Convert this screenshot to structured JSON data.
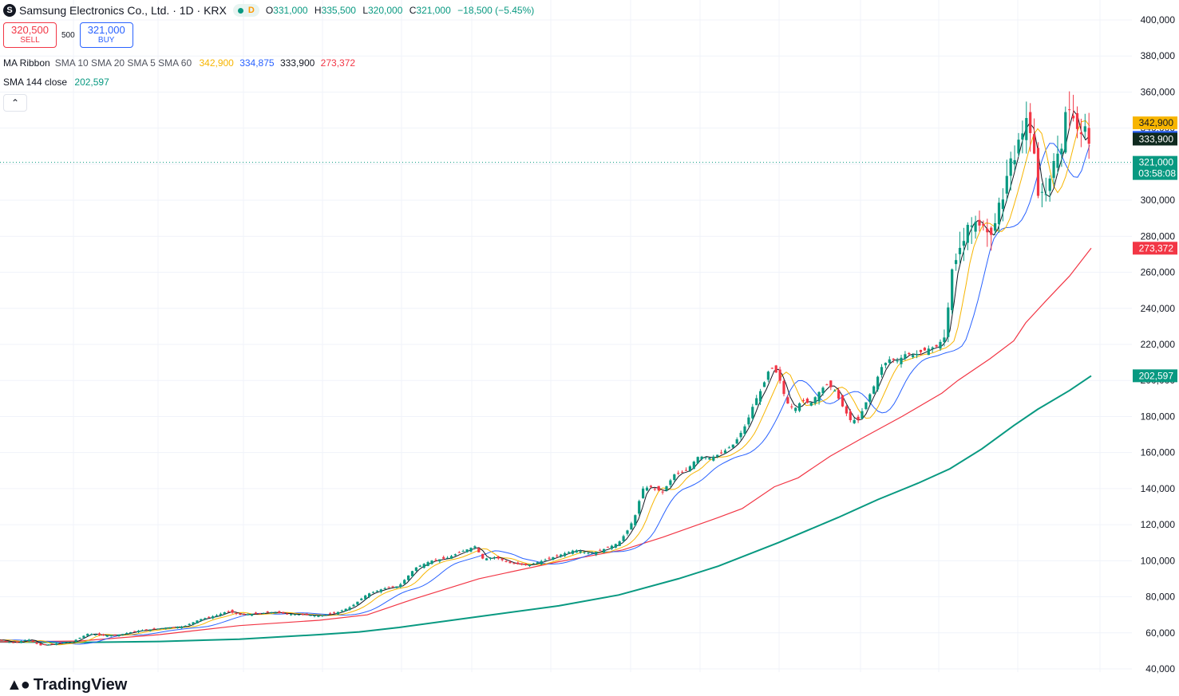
{
  "header": {
    "logo_letter": "S",
    "title": "Samsung Electronics Co., Ltd. · 1D · KRX",
    "market_badge": "D",
    "ohlc": {
      "o_label": "O",
      "o": "331,000",
      "h_label": "H",
      "h": "335,500",
      "l_label": "L",
      "l": "320,000",
      "c_label": "C",
      "c": "321,000",
      "change": "−18,500 (−5.45%)"
    }
  },
  "trade": {
    "sell_price": "320,500",
    "sell_label": "SELL",
    "spread": "500",
    "buy_price": "321,000",
    "buy_label": "BUY"
  },
  "indicators": [
    {
      "name": "MA Ribbon",
      "params": "SMA 10 SMA 20 SMA 5 SMA 60",
      "values": [
        {
          "text": "342,900",
          "color": "#f7b500"
        },
        {
          "text": "334,875",
          "color": "#2962ff"
        },
        {
          "text": "333,900",
          "color": "#131722"
        },
        {
          "text": "273,372",
          "color": "#f23645"
        }
      ]
    },
    {
      "name": "SMA 144 close",
      "params": "",
      "values": [
        {
          "text": "202,597",
          "color": "#089981"
        }
      ]
    }
  ],
  "collapse_icon": "chevron-up-icon",
  "brand": {
    "text": "TradingView",
    "icon": "tradingview-logo-icon"
  },
  "chart_data": {
    "type": "candlestick",
    "ylim": [
      40000,
      400000
    ],
    "y_ticks": [
      "40,000",
      "60,000",
      "80,000",
      "100,000",
      "120,000",
      "140,000",
      "160,000",
      "180,000",
      "200,000",
      "220,000",
      "240,000",
      "260,000",
      "280,000",
      "300,000",
      "320,000",
      "340,000",
      "360,000",
      "380,000",
      "400,000"
    ],
    "grid": true,
    "last_price": {
      "value": 321000,
      "label": "321,000",
      "countdown": "03:58:08",
      "color": "#089981"
    },
    "axis_badges": [
      {
        "value": 342900,
        "label": "342,900",
        "color": "#f7b500",
        "text_color": "#131722"
      },
      {
        "value": 334875,
        "label": "334,875",
        "color": "#2962ff",
        "text_color": "#ffffff"
      },
      {
        "value": 333900,
        "label": "333,900",
        "color": "#0f2a1f",
        "text_color": "#ffffff"
      },
      {
        "value": 273372,
        "label": "273,372",
        "color": "#f23645",
        "text_color": "#ffffff"
      },
      {
        "value": 202597,
        "label": "202,597",
        "color": "#089981",
        "text_color": "#ffffff"
      }
    ],
    "up_color": "#089981",
    "down_color": "#f23645",
    "close_path": [
      [
        0,
        56000
      ],
      [
        10,
        55000
      ],
      [
        20,
        54500
      ],
      [
        35,
        56500
      ],
      [
        50,
        53000
      ],
      [
        70,
        54000
      ],
      [
        90,
        55000
      ],
      [
        110,
        59500
      ],
      [
        130,
        58500
      ],
      [
        150,
        59000
      ],
      [
        170,
        61000
      ],
      [
        190,
        62000
      ],
      [
        210,
        63000
      ],
      [
        230,
        63500
      ],
      [
        250,
        67500
      ],
      [
        270,
        69500
      ],
      [
        285,
        72000
      ],
      [
        300,
        70000
      ],
      [
        320,
        70500
      ],
      [
        340,
        71500
      ],
      [
        360,
        70500
      ],
      [
        380,
        70000
      ],
      [
        400,
        69500
      ],
      [
        420,
        71000
      ],
      [
        440,
        74500
      ],
      [
        460,
        81500
      ],
      [
        480,
        84500
      ],
      [
        500,
        86000
      ],
      [
        520,
        96000
      ],
      [
        540,
        100000
      ],
      [
        560,
        101500
      ],
      [
        575,
        104500
      ],
      [
        595,
        108000
      ],
      [
        605,
        101000
      ],
      [
        620,
        102000
      ],
      [
        640,
        98500
      ],
      [
        660,
        97500
      ],
      [
        680,
        100000
      ],
      [
        700,
        103000
      ],
      [
        720,
        106000
      ],
      [
        740,
        104000
      ],
      [
        760,
        107000
      ],
      [
        775,
        110000
      ],
      [
        785,
        116000
      ],
      [
        795,
        124000
      ],
      [
        805,
        140000
      ],
      [
        815,
        141000
      ],
      [
        830,
        138000
      ],
      [
        845,
        148000
      ],
      [
        860,
        150000
      ],
      [
        875,
        158000
      ],
      [
        890,
        157000
      ],
      [
        905,
        160000
      ],
      [
        920,
        165000
      ],
      [
        935,
        176000
      ],
      [
        945,
        188000
      ],
      [
        955,
        196000
      ],
      [
        965,
        208000
      ],
      [
        975,
        203000
      ],
      [
        985,
        188000
      ],
      [
        995,
        184000
      ],
      [
        1005,
        189000
      ],
      [
        1015,
        187000
      ],
      [
        1025,
        193000
      ],
      [
        1035,
        198000
      ],
      [
        1045,
        195000
      ],
      [
        1055,
        186000
      ],
      [
        1065,
        178000
      ],
      [
        1075,
        178000
      ],
      [
        1085,
        188000
      ],
      [
        1095,
        197000
      ],
      [
        1105,
        208000
      ],
      [
        1115,
        212000
      ],
      [
        1125,
        211000
      ],
      [
        1135,
        215000
      ],
      [
        1145,
        214000
      ],
      [
        1155,
        216000
      ],
      [
        1165,
        218000
      ],
      [
        1175,
        219000
      ],
      [
        1185,
        227000
      ],
      [
        1193,
        262000
      ],
      [
        1200,
        270000
      ],
      [
        1210,
        285000
      ],
      [
        1220,
        290000
      ],
      [
        1230,
        284000
      ],
      [
        1240,
        279000
      ],
      [
        1250,
        293000
      ],
      [
        1260,
        308000
      ],
      [
        1270,
        325000
      ],
      [
        1278,
        340000
      ],
      [
        1285,
        345000
      ],
      [
        1292,
        335000
      ],
      [
        1300,
        305000
      ],
      [
        1310,
        300000
      ],
      [
        1318,
        315000
      ],
      [
        1325,
        325000
      ],
      [
        1332,
        335000
      ],
      [
        1338,
        355000
      ],
      [
        1345,
        345000
      ],
      [
        1352,
        330000
      ],
      [
        1360,
        339500
      ],
      [
        1367,
        321000
      ]
    ],
    "sma_144_path": [
      [
        0,
        55000
      ],
      [
        100,
        54700
      ],
      [
        200,
        55200
      ],
      [
        300,
        56500
      ],
      [
        400,
        59000
      ],
      [
        450,
        60500
      ],
      [
        500,
        63000
      ],
      [
        600,
        69000
      ],
      [
        700,
        75000
      ],
      [
        775,
        81000
      ],
      [
        850,
        90000
      ],
      [
        900,
        97000
      ],
      [
        975,
        110000
      ],
      [
        1050,
        124000
      ],
      [
        1100,
        134000
      ],
      [
        1150,
        143000
      ],
      [
        1190,
        151000
      ],
      [
        1230,
        162000
      ],
      [
        1270,
        175000
      ],
      [
        1300,
        184000
      ],
      [
        1340,
        194500
      ],
      [
        1367,
        202597
      ]
    ],
    "sma_60_path": [
      [
        0,
        55000
      ],
      [
        100,
        55500
      ],
      [
        200,
        59000
      ],
      [
        300,
        64000
      ],
      [
        400,
        67000
      ],
      [
        460,
        70000
      ],
      [
        520,
        79000
      ],
      [
        600,
        90000
      ],
      [
        700,
        99500
      ],
      [
        780,
        106000
      ],
      [
        830,
        113000
      ],
      [
        900,
        124000
      ],
      [
        930,
        129000
      ],
      [
        970,
        141000
      ],
      [
        1000,
        146000
      ],
      [
        1040,
        158000
      ],
      [
        1080,
        168000
      ],
      [
        1130,
        180000
      ],
      [
        1180,
        193000
      ],
      [
        1200,
        200000
      ],
      [
        1240,
        212000
      ],
      [
        1270,
        222000
      ],
      [
        1285,
        232000
      ],
      [
        1310,
        244000
      ],
      [
        1340,
        258000
      ],
      [
        1367,
        273372
      ]
    ]
  }
}
